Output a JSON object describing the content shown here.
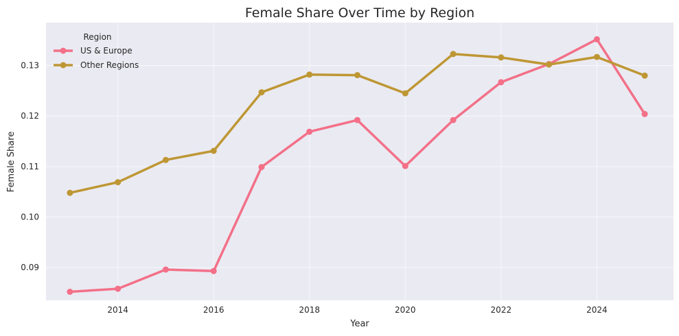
{
  "chart_data": {
    "type": "line",
    "title": "Female Share Over Time by Region",
    "xlabel": "Year",
    "ylabel": "Female Share",
    "xlim": [
      2012.5,
      2025.6
    ],
    "ylim": [
      0.0835,
      0.1385
    ],
    "x_ticks": [
      2014,
      2016,
      2018,
      2020,
      2022,
      2024
    ],
    "y_ticks": [
      0.09,
      0.1,
      0.11,
      0.12,
      0.13
    ],
    "x_tick_labels": [
      "2014",
      "2016",
      "2018",
      "2020",
      "2022",
      "2024"
    ],
    "y_tick_labels": [
      "0.09",
      "0.10",
      "0.11",
      "0.12",
      "0.13"
    ],
    "grid": true,
    "legend": {
      "title": "Region",
      "position": "top-left"
    },
    "x": [
      2013,
      2014,
      2015,
      2016,
      2017,
      2018,
      2019,
      2020,
      2021,
      2022,
      2023,
      2024,
      2025
    ],
    "series": [
      {
        "name": "US & Europe",
        "color": "#f37088",
        "values": [
          0.0852,
          0.0858,
          0.0896,
          0.0893,
          0.1099,
          0.1169,
          0.1192,
          0.1101,
          0.1192,
          0.1267,
          0.1303,
          0.1352,
          0.1204
        ]
      },
      {
        "name": "Other Regions",
        "color": "#be9734",
        "values": [
          0.1048,
          0.1069,
          0.1113,
          0.1131,
          0.1247,
          0.1282,
          0.1281,
          0.1245,
          0.1323,
          0.1316,
          0.1302,
          0.1317,
          0.128
        ]
      }
    ]
  }
}
